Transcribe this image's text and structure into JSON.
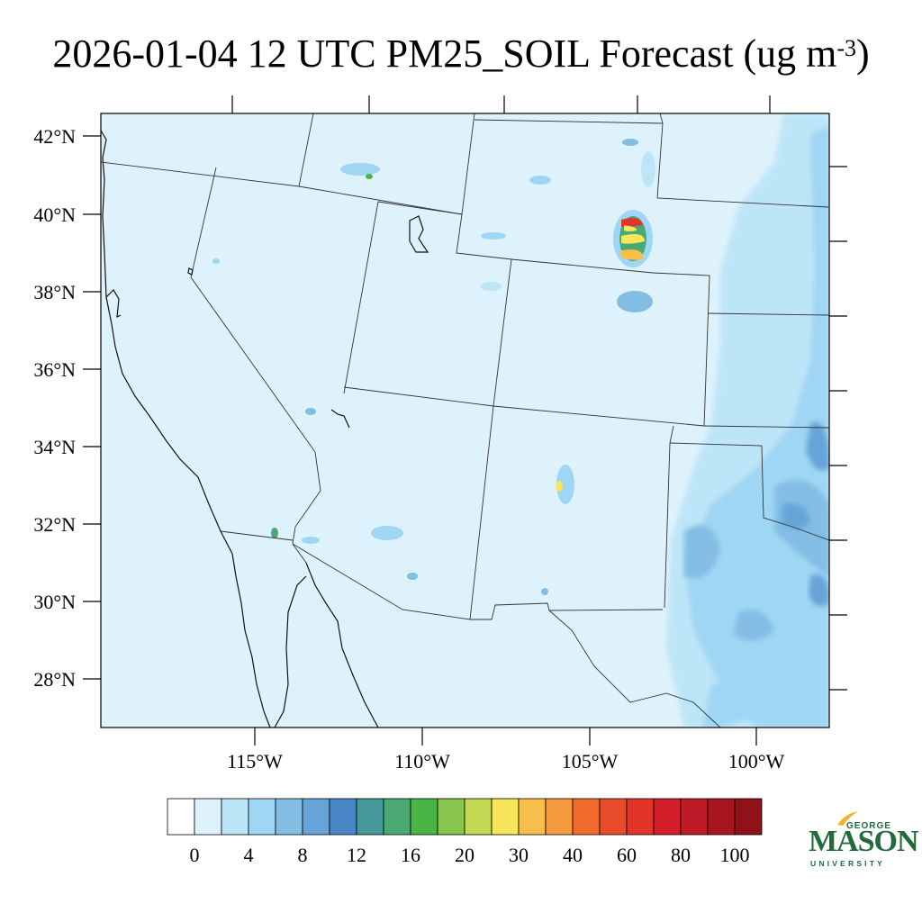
{
  "title": {
    "main": "2026-01-04 12 UTC PM25_SOIL Forecast (ug m",
    "superscript": "-3",
    "close": ")"
  },
  "map": {
    "lon_range": [
      -119.5,
      -97.8
    ],
    "lat_range": [
      26.8,
      42.6
    ],
    "lat_labels": [
      "42°N",
      "40°N",
      "38°N",
      "36°N",
      "34°N",
      "32°N",
      "30°N",
      "28°N"
    ],
    "lon_labels": [
      "115°W",
      "110°W",
      "105°W",
      "100°W"
    ],
    "background_color": "#def2fc"
  },
  "colorbar": {
    "colors": [
      "#ffffff",
      "#def2fc",
      "#bde5f8",
      "#9fd6f3",
      "#83bde4",
      "#66a4d8",
      "#4a87c6",
      "#469a9c",
      "#4aa873",
      "#4ab546",
      "#87c54d",
      "#c3d954",
      "#f7e65a",
      "#f8be4c",
      "#f59a3d",
      "#f06a2b",
      "#e84b2a",
      "#e03528",
      "#d21f2a",
      "#bf1a27",
      "#a8151f",
      "#901219"
    ],
    "labels": [
      "0",
      "4",
      "8",
      "12",
      "16",
      "20",
      "30",
      "40",
      "60",
      "80",
      "100"
    ]
  },
  "logo": {
    "top": "GEORGE",
    "main": "MASON",
    "bottom": "UNIVERSITY",
    "color": "#1f6b3a",
    "accent": "#f2b624"
  }
}
